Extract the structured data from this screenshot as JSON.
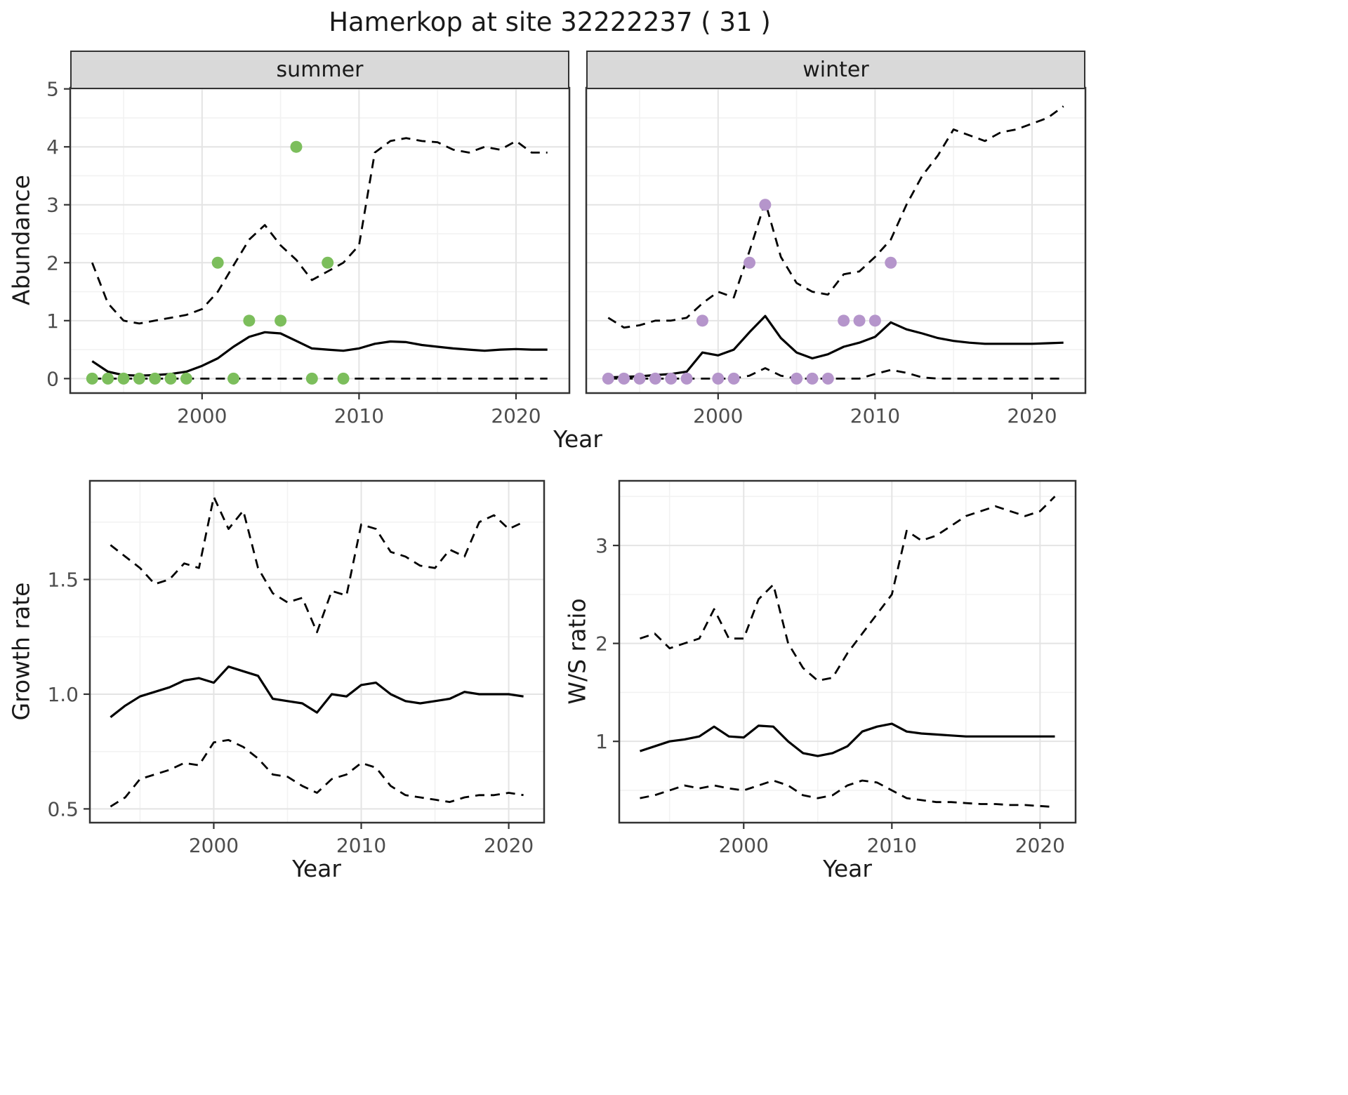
{
  "title": "Hamerkop at site 32222237 ( 31 )",
  "colors": {
    "summer_points": "#7cbe5c",
    "winter_points": "#b595cb",
    "line": "#000000",
    "strip_bg": "#d9d9d9",
    "grid_major": "#e4e4e4",
    "grid_minor": "#f2f2f2",
    "panel_border": "#333333",
    "tick_text": "#4d4d4d"
  },
  "chart_data": [
    {
      "id": "abundance_summer",
      "type": "line",
      "facet": "summer",
      "xlabel": "Year",
      "ylabel": "Abundance",
      "xlim": [
        1991.6,
        2023.4
      ],
      "ylim": [
        -0.25,
        5.02
      ],
      "xticks": [
        2000,
        2010,
        2020
      ],
      "xtick_labels": [
        "2000",
        "2010",
        "2020"
      ],
      "xminor": [
        1995,
        2005,
        2015
      ],
      "yticks": [
        0,
        1,
        2,
        3,
        4,
        5
      ],
      "ytick_labels": [
        "0",
        "1",
        "2",
        "3",
        "4",
        "5"
      ],
      "yminor": [
        0.5,
        1.5,
        2.5,
        3.5,
        4.5
      ],
      "x": [
        1993,
        1994,
        1995,
        1996,
        1997,
        1998,
        1999,
        2000,
        2001,
        2002,
        2003,
        2004,
        2005,
        2006,
        2007,
        2008,
        2009,
        2010,
        2011,
        2012,
        2013,
        2014,
        2015,
        2016,
        2017,
        2018,
        2019,
        2020,
        2021,
        2022
      ],
      "series": [
        {
          "name": "mean",
          "style": "solid",
          "values": [
            0.3,
            0.12,
            0.06,
            0.05,
            0.06,
            0.08,
            0.12,
            0.22,
            0.35,
            0.55,
            0.72,
            0.8,
            0.78,
            0.65,
            0.52,
            0.5,
            0.48,
            0.52,
            0.6,
            0.64,
            0.63,
            0.58,
            0.55,
            0.52,
            0.5,
            0.48,
            0.5,
            0.51,
            0.5,
            0.5
          ]
        },
        {
          "name": "upper_ci",
          "style": "dashed",
          "values": [
            2.0,
            1.3,
            1.0,
            0.95,
            1.0,
            1.05,
            1.1,
            1.2,
            1.5,
            1.95,
            2.4,
            2.65,
            2.3,
            2.05,
            1.7,
            1.85,
            2.0,
            2.3,
            3.9,
            4.1,
            4.15,
            4.1,
            4.08,
            3.95,
            3.9,
            4.0,
            3.95,
            4.1,
            3.9,
            3.9
          ]
        },
        {
          "name": "lower_ci",
          "style": "dashed",
          "values": [
            0,
            0,
            0,
            0,
            0,
            0,
            0,
            0,
            0,
            0,
            0,
            0,
            0,
            0,
            0,
            0,
            0,
            0,
            0,
            0,
            0,
            0,
            0,
            0,
            0,
            0,
            0,
            0,
            0,
            0
          ]
        }
      ],
      "points": {
        "name": "observed-counts",
        "color_key": "summer_points",
        "x": [
          1993,
          1994,
          1995,
          1996,
          1997,
          1998,
          1999,
          2001,
          2002,
          2003,
          2005,
          2006,
          2007,
          2008,
          2009
        ],
        "y": [
          0,
          0,
          0,
          0,
          0,
          0,
          0,
          2,
          0,
          1,
          1,
          4,
          0,
          2,
          0
        ]
      }
    },
    {
      "id": "abundance_winter",
      "type": "line",
      "facet": "winter",
      "xlabel": "Year",
      "ylabel": "Abundance",
      "xlim": [
        1991.6,
        2023.4
      ],
      "ylim": [
        -0.25,
        5.02
      ],
      "xticks": [
        2000,
        2010,
        2020
      ],
      "xtick_labels": [
        "2000",
        "2010",
        "2020"
      ],
      "xminor": [
        1995,
        2005,
        2015
      ],
      "yticks": [
        0,
        1,
        2,
        3,
        4,
        5
      ],
      "ytick_labels": [
        "0",
        "1",
        "2",
        "3",
        "4",
        "5"
      ],
      "yminor": [
        0.5,
        1.5,
        2.5,
        3.5,
        4.5
      ],
      "x": [
        1993,
        1994,
        1995,
        1996,
        1997,
        1998,
        1999,
        2000,
        2001,
        2002,
        2003,
        2004,
        2005,
        2006,
        2007,
        2008,
        2009,
        2010,
        2011,
        2012,
        2013,
        2014,
        2015,
        2016,
        2017,
        2018,
        2019,
        2020,
        2021,
        2022
      ],
      "series": [
        {
          "name": "mean",
          "style": "solid",
          "values": [
            0.02,
            0.03,
            0.04,
            0.06,
            0.08,
            0.12,
            0.45,
            0.4,
            0.5,
            0.8,
            1.08,
            0.7,
            0.45,
            0.35,
            0.42,
            0.55,
            0.62,
            0.72,
            0.97,
            0.85,
            0.78,
            0.7,
            0.65,
            0.62,
            0.6,
            0.6,
            0.6,
            0.6,
            0.61,
            0.62
          ]
        },
        {
          "name": "upper_ci",
          "style": "dashed",
          "values": [
            1.05,
            0.88,
            0.92,
            1.0,
            1.0,
            1.05,
            1.3,
            1.5,
            1.4,
            2.2,
            3.05,
            2.1,
            1.65,
            1.5,
            1.45,
            1.8,
            1.85,
            2.1,
            2.4,
            3.0,
            3.5,
            3.85,
            4.3,
            4.2,
            4.1,
            4.25,
            4.3,
            4.4,
            4.5,
            4.7
          ]
        },
        {
          "name": "lower_ci",
          "style": "dashed",
          "values": [
            0,
            0,
            0,
            0,
            0,
            0,
            0,
            0,
            0,
            0.05,
            0.18,
            0.05,
            0,
            0,
            0,
            0,
            0,
            0.08,
            0.15,
            0.1,
            0.02,
            0,
            0,
            0,
            0,
            0,
            0,
            0,
            0,
            0
          ]
        }
      ],
      "points": {
        "name": "observed-counts",
        "color_key": "winter_points",
        "x": [
          1993,
          1994,
          1995,
          1996,
          1997,
          1998,
          1999,
          2000,
          2001,
          2002,
          2003,
          2005,
          2006,
          2007,
          2008,
          2009,
          2010,
          2011
        ],
        "y": [
          0,
          0,
          0,
          0,
          0,
          0,
          1,
          0,
          0,
          2,
          3,
          0,
          0,
          0,
          1,
          1,
          1,
          2
        ]
      }
    },
    {
      "id": "growth_rate",
      "type": "line",
      "facet": "",
      "xlabel": "Year",
      "ylabel": "Growth rate",
      "xlim": [
        1991.6,
        2022.4
      ],
      "ylim": [
        0.44,
        1.93
      ],
      "xticks": [
        2000,
        2010,
        2020
      ],
      "xtick_labels": [
        "2000",
        "2010",
        "2020"
      ],
      "xminor": [
        1995,
        2005,
        2015
      ],
      "yticks": [
        0.5,
        1.0,
        1.5
      ],
      "ytick_labels": [
        "0.5",
        "1.0",
        "1.5"
      ],
      "yminor": [
        0.75,
        1.25,
        1.75
      ],
      "x": [
        1993,
        1994,
        1995,
        1996,
        1997,
        1998,
        1999,
        2000,
        2001,
        2002,
        2003,
        2004,
        2005,
        2006,
        2007,
        2008,
        2009,
        2010,
        2011,
        2012,
        2013,
        2014,
        2015,
        2016,
        2017,
        2018,
        2019,
        2020,
        2021
      ],
      "series": [
        {
          "name": "mean",
          "style": "solid",
          "values": [
            0.9,
            0.95,
            0.99,
            1.01,
            1.03,
            1.06,
            1.07,
            1.05,
            1.12,
            1.1,
            1.08,
            0.98,
            0.97,
            0.96,
            0.92,
            1.0,
            0.99,
            1.04,
            1.05,
            1.0,
            0.97,
            0.96,
            0.97,
            0.98,
            1.01,
            1.0,
            1.0,
            1.0,
            0.99
          ]
        },
        {
          "name": "upper_ci",
          "style": "dashed",
          "values": [
            1.65,
            1.6,
            1.55,
            1.48,
            1.5,
            1.57,
            1.55,
            1.86,
            1.72,
            1.8,
            1.55,
            1.44,
            1.4,
            1.42,
            1.27,
            1.45,
            1.43,
            1.74,
            1.72,
            1.62,
            1.6,
            1.56,
            1.55,
            1.63,
            1.6,
            1.75,
            1.78,
            1.72,
            1.75
          ]
        },
        {
          "name": "lower_ci",
          "style": "dashed",
          "values": [
            0.51,
            0.55,
            0.63,
            0.65,
            0.67,
            0.7,
            0.69,
            0.79,
            0.8,
            0.77,
            0.72,
            0.65,
            0.64,
            0.6,
            0.57,
            0.63,
            0.65,
            0.7,
            0.68,
            0.6,
            0.56,
            0.55,
            0.54,
            0.53,
            0.55,
            0.56,
            0.56,
            0.57,
            0.56
          ]
        }
      ]
    },
    {
      "id": "ws_ratio",
      "type": "line",
      "facet": "",
      "xlabel": "Year",
      "ylabel": "W/S ratio",
      "xlim": [
        1991.6,
        2022.4
      ],
      "ylim": [
        0.17,
        3.66
      ],
      "xticks": [
        2000,
        2010,
        2020
      ],
      "xtick_labels": [
        "2000",
        "2010",
        "2020"
      ],
      "xminor": [
        1995,
        2005,
        2015
      ],
      "yticks": [
        1,
        2,
        3
      ],
      "ytick_labels": [
        "1",
        "2",
        "3"
      ],
      "yminor": [
        0.5,
        1.5,
        2.5,
        3.5
      ],
      "x": [
        1993,
        1994,
        1995,
        1996,
        1997,
        1998,
        1999,
        2000,
        2001,
        2002,
        2003,
        2004,
        2005,
        2006,
        2007,
        2008,
        2009,
        2010,
        2011,
        2012,
        2013,
        2014,
        2015,
        2016,
        2017,
        2018,
        2019,
        2020,
        2021
      ],
      "series": [
        {
          "name": "mean",
          "style": "solid",
          "values": [
            0.9,
            0.95,
            1.0,
            1.02,
            1.05,
            1.15,
            1.05,
            1.04,
            1.16,
            1.15,
            1.0,
            0.88,
            0.85,
            0.88,
            0.95,
            1.1,
            1.15,
            1.18,
            1.1,
            1.08,
            1.07,
            1.06,
            1.05,
            1.05,
            1.05,
            1.05,
            1.05,
            1.05,
            1.05
          ]
        },
        {
          "name": "upper_ci",
          "style": "dashed",
          "values": [
            2.05,
            2.1,
            1.95,
            2.0,
            2.05,
            2.35,
            2.05,
            2.05,
            2.45,
            2.6,
            2.0,
            1.75,
            1.62,
            1.65,
            1.9,
            2.1,
            2.3,
            2.5,
            3.15,
            3.05,
            3.1,
            3.2,
            3.3,
            3.35,
            3.4,
            3.35,
            3.3,
            3.35,
            3.5
          ]
        },
        {
          "name": "lower_ci",
          "style": "dashed",
          "values": [
            0.42,
            0.45,
            0.5,
            0.55,
            0.52,
            0.55,
            0.52,
            0.5,
            0.55,
            0.6,
            0.55,
            0.45,
            0.42,
            0.45,
            0.55,
            0.6,
            0.58,
            0.5,
            0.42,
            0.4,
            0.38,
            0.38,
            0.37,
            0.36,
            0.36,
            0.35,
            0.35,
            0.34,
            0.33
          ]
        }
      ]
    }
  ]
}
